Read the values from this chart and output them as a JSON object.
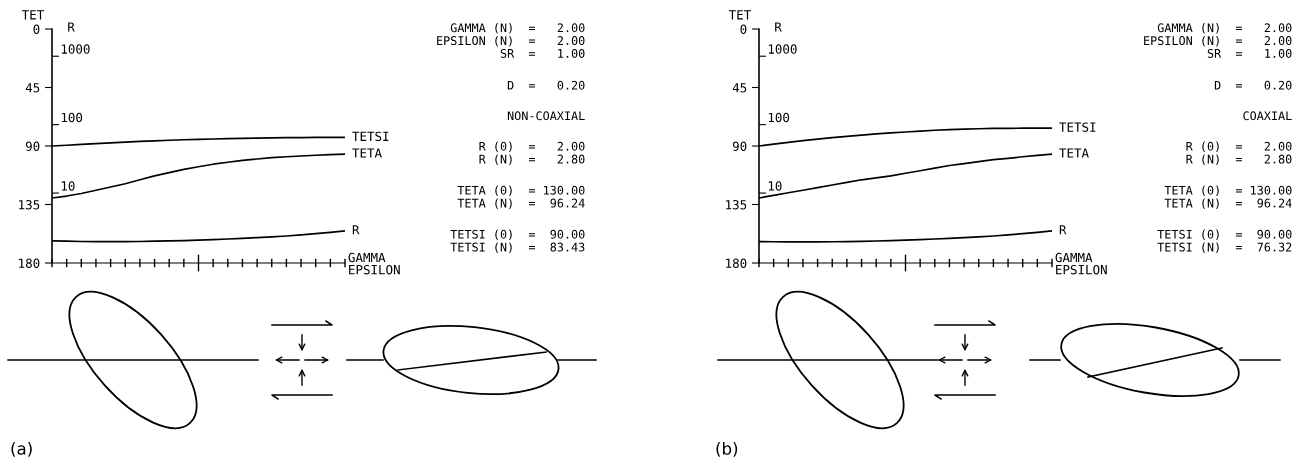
{
  "chart_data": [
    {
      "type": "line",
      "categories": [
        null,
        null,
        null,
        null,
        null,
        null,
        null,
        null,
        null,
        null,
        null,
        null,
        null,
        null,
        null,
        null,
        null,
        null,
        null,
        null,
        null
      ],
      "ylabel": "TET",
      "y2label": "R",
      "xlabel": "GAMMA\nEPSILON",
      "ylim": [
        180,
        0
      ],
      "yticks": [
        0,
        45,
        90,
        135,
        180
      ],
      "y2lim": [
        0.95,
        2500
      ],
      "y2ticks": [
        10,
        100,
        1000
      ],
      "log": "y2",
      "grid": false,
      "legend": false,
      "marker": "none",
      "line_style": "solid",
      "series": [
        {
          "name": "TETSI",
          "color": "#000000",
          "axis": "y",
          "values": [
            90,
            89.4,
            88.8,
            88.2,
            87.6,
            87,
            86.5,
            86,
            85.6,
            85.2,
            84.9,
            84.6,
            84.3,
            84.1,
            83.9,
            83.7,
            83.6,
            83.5,
            83.4,
            83.4,
            83.4
          ]
        },
        {
          "name": "TETA",
          "color": "#000000",
          "axis": "y",
          "values": [
            130,
            128.5,
            126.5,
            124,
            121.5,
            119,
            116,
            113,
            110.5,
            108,
            106,
            104,
            102.5,
            101,
            100,
            99,
            98.3,
            97.7,
            97.1,
            96.6,
            96.2
          ]
        },
        {
          "name": "R",
          "color": "#000000",
          "axis": "y2",
          "values": [
            2.0,
            1.98,
            1.96,
            1.95,
            1.95,
            1.95,
            1.96,
            1.98,
            2.0,
            2.02,
            2.05,
            2.09,
            2.13,
            2.18,
            2.23,
            2.29,
            2.36,
            2.45,
            2.55,
            2.67,
            2.8
          ]
        }
      ],
      "annotations": [
        "GAMMA (N)  =   2.00\nEPSILON (N)  =   2.00\nSR  =   1.00",
        "D  =   0.20",
        "NON-COAXIAL",
        "R (0)  =   2.00\nR (N)  =   2.80",
        "TETA (0)  = 130.00\nTETA (N)  =  96.24",
        "TETSI (0)  =  90.00\nTETSI (N)  =  83.43",
        "(a)"
      ]
    },
    {
      "type": "line",
      "categories": [
        null,
        null,
        null,
        null,
        null,
        null,
        null,
        null,
        null,
        null,
        null,
        null,
        null,
        null,
        null,
        null,
        null,
        null,
        null,
        null,
        null
      ],
      "ylabel": "TET",
      "y2label": "R",
      "xlabel": "GAMMA\nEPSILON",
      "ylim": [
        180,
        0
      ],
      "yticks": [
        0,
        45,
        90,
        135,
        180
      ],
      "y2lim": [
        0.95,
        2500
      ],
      "y2ticks": [
        10,
        100,
        1000
      ],
      "log": "y2",
      "grid": false,
      "legend": false,
      "marker": "none",
      "line_style": "solid",
      "series": [
        {
          "name": "TETSI",
          "color": "#000000",
          "axis": "y",
          "values": [
            90,
            88.6,
            87.2,
            85.9,
            84.7,
            83.6,
            82.6,
            81.6,
            80.7,
            79.9,
            79.2,
            78.5,
            77.9,
            77.4,
            77,
            76.7,
            76.5,
            76.4,
            76.3,
            76.3,
            76.3
          ]
        },
        {
          "name": "TETA",
          "color": "#000000",
          "axis": "y",
          "values": [
            130,
            128,
            126,
            124,
            122,
            120,
            118,
            116,
            114.5,
            113,
            111,
            109,
            107,
            105,
            103.5,
            102,
            100.5,
            99.5,
            98.3,
            97.2,
            96.2
          ]
        },
        {
          "name": "R",
          "color": "#000000",
          "axis": "y2",
          "values": [
            1.95,
            1.94,
            1.93,
            1.93,
            1.93,
            1.94,
            1.95,
            1.97,
            1.99,
            2.02,
            2.05,
            2.09,
            2.13,
            2.18,
            2.23,
            2.29,
            2.36,
            2.45,
            2.55,
            2.67,
            2.8
          ]
        }
      ],
      "annotations": [
        "GAMMA (N)  =   2.00\nEPSILON (N)  =   2.00\nSR  =   1.00",
        "D  =   0.20",
        "COAXIAL",
        "R (0)  =   2.00\nR (N)  =   2.80",
        "TETA (0)  = 130.00\nTETA (N)  =  96.24",
        "TETSI (0)  =  90.00\nTETSI (N)  =  76.32",
        "(b)"
      ]
    }
  ]
}
